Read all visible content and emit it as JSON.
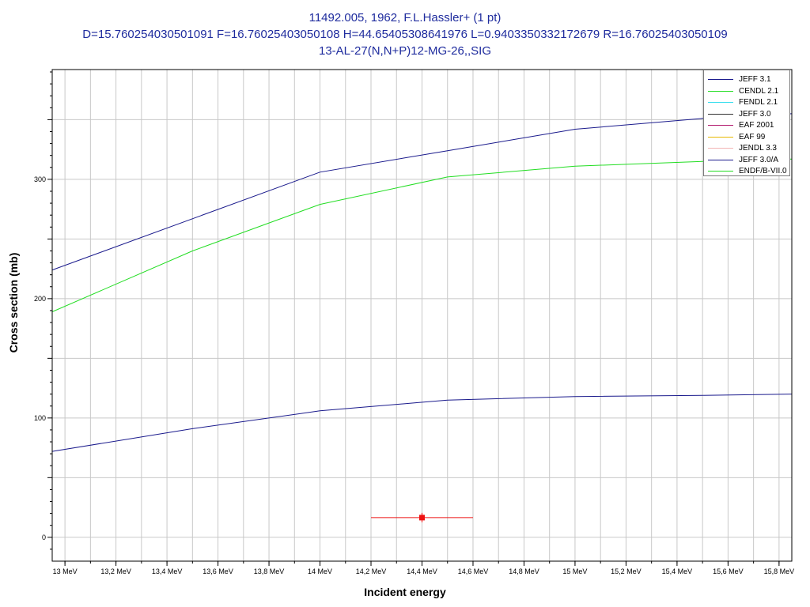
{
  "page": {
    "title_lines": [
      "11492.005, 1962, F.L.Hassler+ (1 pt)",
      "D=15.760254030501091 F=16.76025403050108 H=44.65405308641976 L=0.9403350332172679 R=16.76025403050109",
      "13-AL-27(N,N+P)12-MG-26,,SIG"
    ]
  },
  "chart_data": {
    "type": "line",
    "xlabel": "Incident energy",
    "ylabel": "Cross section (mb)",
    "xlim": [
      12.95,
      15.85
    ],
    "ylim": [
      -20,
      392
    ],
    "grid": true,
    "legend_position": "top-right",
    "x_ticks": [
      {
        "value": 13.0,
        "label": "13 MeV"
      },
      {
        "value": 13.2,
        "label": "13,2 MeV"
      },
      {
        "value": 13.4,
        "label": "13,4 MeV"
      },
      {
        "value": 13.6,
        "label": "13,6 MeV"
      },
      {
        "value": 13.8,
        "label": "13,8 MeV"
      },
      {
        "value": 14.0,
        "label": "14 MeV"
      },
      {
        "value": 14.2,
        "label": "14,2 MeV"
      },
      {
        "value": 14.4,
        "label": "14,4 MeV"
      },
      {
        "value": 14.6,
        "label": "14,6 MeV"
      },
      {
        "value": 14.8,
        "label": "14,8 MeV"
      },
      {
        "value": 15.0,
        "label": "15 MeV"
      },
      {
        "value": 15.2,
        "label": "15,2 MeV"
      },
      {
        "value": 15.4,
        "label": "15,4 MeV"
      },
      {
        "value": 15.6,
        "label": "15,6 MeV"
      },
      {
        "value": 15.8,
        "label": "15,8 MeV"
      }
    ],
    "y_ticks": [
      {
        "value": 0,
        "label": "0"
      },
      {
        "value": 100,
        "label": "100"
      },
      {
        "value": 200,
        "label": "200"
      },
      {
        "value": 300,
        "label": "300"
      }
    ],
    "series": [
      {
        "name": "JEFF 3.1",
        "color": "#1a1a8c",
        "x": [
          12.95,
          14.0,
          14.5,
          15.0,
          15.5,
          15.85
        ],
        "y": [
          224,
          306,
          324,
          342,
          351,
          355
        ]
      },
      {
        "name": "CENDL 2.1",
        "color": "#22dd22",
        "x": [
          12.95,
          13.5,
          14.0,
          14.5,
          15.0,
          15.5,
          15.85
        ],
        "y": [
          189,
          240,
          279,
          302,
          311,
          315,
          317
        ]
      },
      {
        "name": "FENDL 2.1",
        "color": "#33ddee",
        "x": [],
        "y": []
      },
      {
        "name": "JEFF 3.0",
        "color": "#333333",
        "x": [],
        "y": []
      },
      {
        "name": "EAF 2001",
        "color": "#b0156b",
        "x": [],
        "y": []
      },
      {
        "name": "EAF 99",
        "color": "#e6b800",
        "x": [],
        "y": []
      },
      {
        "name": "JENDL 3.3",
        "color": "#f2b5b5",
        "x": [],
        "y": []
      },
      {
        "name": "JEFF 3.0/A",
        "color": "#1a1a8c",
        "x": [
          12.95,
          13.5,
          14.0,
          14.5,
          15.0,
          15.5,
          15.85
        ],
        "y": [
          72,
          91,
          106,
          115,
          118,
          119,
          120
        ]
      },
      {
        "name": "ENDF/B-VII.0",
        "color": "#22dd22",
        "x": [],
        "y": []
      }
    ],
    "experimental_points": [
      {
        "x": 14.4,
        "y": 16.5,
        "xerr": 0.2,
        "color": "#ee1111"
      }
    ]
  }
}
